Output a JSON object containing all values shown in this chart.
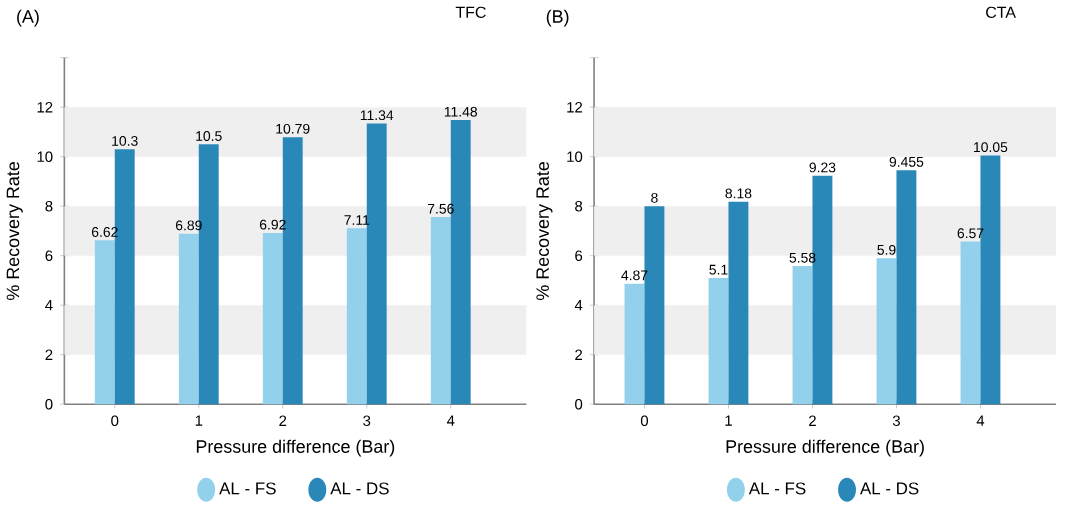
{
  "chart_data": [
    {
      "type": "bar",
      "title": "TFC",
      "annotations": [
        "(A)"
      ],
      "xlabel": "Pressure difference (Bar)",
      "ylabel": "% Recovery Rate",
      "categories": [
        "0",
        "1",
        "2",
        "3",
        "4"
      ],
      "series": [
        {
          "name": "AL - FS",
          "color": "#93d0ec",
          "values": [
            6.62,
            6.89,
            6.92,
            7.11,
            7.56
          ]
        },
        {
          "name": "AL - DS",
          "color": "#2a88b8",
          "values": [
            10.3,
            10.5,
            10.79,
            11.34,
            11.48
          ]
        }
      ],
      "ylim": [
        0,
        14
      ],
      "yticks": [
        0,
        2,
        4,
        6,
        8,
        10,
        12,
        {
          "value": 14,
          "label": null
        }
      ],
      "bands": [
        {
          "axis": "y",
          "from": 2,
          "to": 4,
          "color": "#efefef"
        },
        {
          "axis": "y",
          "from": 6,
          "to": 8,
          "color": "#efefef"
        },
        {
          "axis": "y",
          "from": 10,
          "to": 12,
          "color": "#efefef"
        }
      ],
      "data_labels": true,
      "legend": "bottom",
      "marker": "circle"
    },
    {
      "type": "bar",
      "title": "CTA",
      "annotations": [
        "(B)"
      ],
      "xlabel": "Pressure difference (Bar)",
      "ylabel": "% Recovery Rate",
      "categories": [
        "0",
        "1",
        "2",
        "3",
        "4"
      ],
      "series": [
        {
          "name": "AL - FS",
          "color": "#93d0ec",
          "values": [
            4.87,
            5.1,
            5.58,
            5.9,
            6.57
          ]
        },
        {
          "name": "AL - DS",
          "color": "#2a88b8",
          "values": [
            8,
            8.18,
            9.23,
            9.455,
            10.05
          ]
        }
      ],
      "ylim": [
        0,
        14
      ],
      "yticks": [
        0,
        2,
        4,
        6,
        8,
        10,
        12,
        {
          "value": 14,
          "label": null
        }
      ],
      "bands": [
        {
          "axis": "y",
          "from": 2,
          "to": 4,
          "color": "#efefef"
        },
        {
          "axis": "y",
          "from": 6,
          "to": 8,
          "color": "#efefef"
        },
        {
          "axis": "y",
          "from": 10,
          "to": 12,
          "color": "#efefef"
        }
      ],
      "data_labels": true,
      "legend": "bottom",
      "marker": "circle"
    }
  ]
}
